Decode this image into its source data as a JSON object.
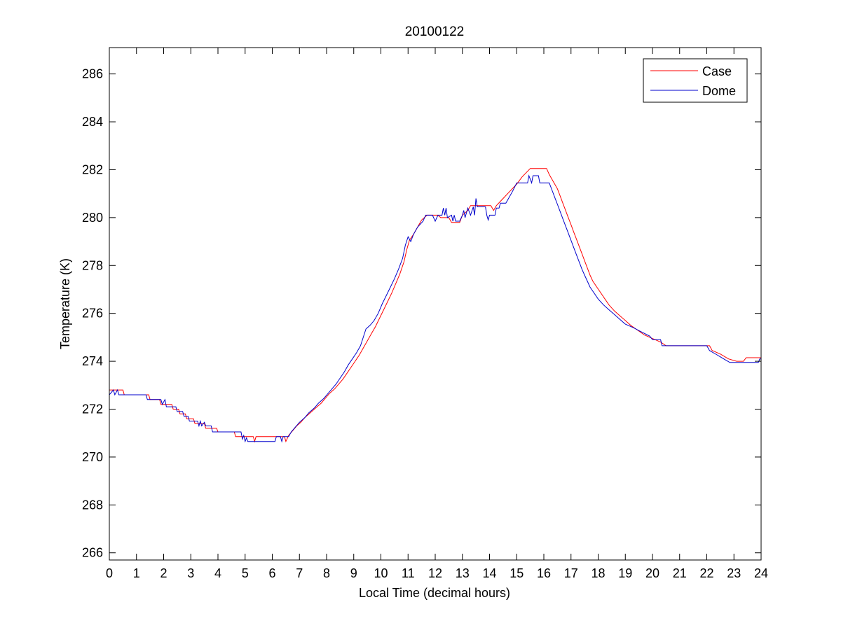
{
  "chart_data": {
    "type": "line",
    "title": "20100122",
    "xlabel": "Local Time (decimal hours)",
    "ylabel": "Temperature (K)",
    "xlim": [
      0,
      24
    ],
    "ylim": [
      265.7,
      287.1
    ],
    "xticks": [
      0,
      1,
      2,
      3,
      4,
      5,
      6,
      7,
      8,
      9,
      10,
      11,
      12,
      13,
      14,
      15,
      16,
      17,
      18,
      19,
      20,
      21,
      22,
      23,
      24
    ],
    "yticks": [
      266,
      268,
      270,
      272,
      274,
      276,
      278,
      280,
      282,
      284,
      286
    ],
    "grid": false,
    "legend": "top-right",
    "series": [
      {
        "name": "Case",
        "color": "#ff0000",
        "points": [
          [
            0,
            272.8
          ],
          [
            0.5,
            272.8
          ],
          [
            0.55,
            272.6
          ],
          [
            1.45,
            272.6
          ],
          [
            1.5,
            272.4
          ],
          [
            1.85,
            272.4
          ],
          [
            1.9,
            272.2
          ],
          [
            2.3,
            272.2
          ],
          [
            2.35,
            272.0
          ],
          [
            2.55,
            272.0
          ],
          [
            2.6,
            271.8
          ],
          [
            2.8,
            271.8
          ],
          [
            2.85,
            271.6
          ],
          [
            3.1,
            271.6
          ],
          [
            3.15,
            271.4
          ],
          [
            3.5,
            271.4
          ],
          [
            3.55,
            271.2
          ],
          [
            3.95,
            271.2
          ],
          [
            4.0,
            271.05
          ],
          [
            4.6,
            271.05
          ],
          [
            4.65,
            270.85
          ],
          [
            5.3,
            270.85
          ],
          [
            5.35,
            270.65
          ],
          [
            5.4,
            270.85
          ],
          [
            6.45,
            270.85
          ],
          [
            6.5,
            270.65
          ],
          [
            6.6,
            270.9
          ],
          [
            6.75,
            271.1
          ],
          [
            6.9,
            271.3
          ],
          [
            7.05,
            271.45
          ],
          [
            7.2,
            271.65
          ],
          [
            7.4,
            271.85
          ],
          [
            7.6,
            272.05
          ],
          [
            7.8,
            272.25
          ],
          [
            7.95,
            272.45
          ],
          [
            8.1,
            272.65
          ],
          [
            8.3,
            272.85
          ],
          [
            8.45,
            273.05
          ],
          [
            8.6,
            273.25
          ],
          [
            8.75,
            273.5
          ],
          [
            8.9,
            273.75
          ],
          [
            9.05,
            274.0
          ],
          [
            9.2,
            274.25
          ],
          [
            9.35,
            274.55
          ],
          [
            9.5,
            274.85
          ],
          [
            9.65,
            275.15
          ],
          [
            9.8,
            275.45
          ],
          [
            9.95,
            275.8
          ],
          [
            10.1,
            276.15
          ],
          [
            10.25,
            276.5
          ],
          [
            10.4,
            276.85
          ],
          [
            10.55,
            277.25
          ],
          [
            10.7,
            277.65
          ],
          [
            10.85,
            278.15
          ],
          [
            10.95,
            278.65
          ],
          [
            11.05,
            279.05
          ],
          [
            11.2,
            279.3
          ],
          [
            11.35,
            279.6
          ],
          [
            11.5,
            279.9
          ],
          [
            11.7,
            280.1
          ],
          [
            12.1,
            280.1
          ],
          [
            12.2,
            280.0
          ],
          [
            12.5,
            280.0
          ],
          [
            12.6,
            279.8
          ],
          [
            12.9,
            279.8
          ],
          [
            13.0,
            280.1
          ],
          [
            13.2,
            280.3
          ],
          [
            13.3,
            280.5
          ],
          [
            14.05,
            280.5
          ],
          [
            14.15,
            280.3
          ],
          [
            14.25,
            280.5
          ],
          [
            14.5,
            280.8
          ],
          [
            14.75,
            281.1
          ],
          [
            15.0,
            281.4
          ],
          [
            15.2,
            281.7
          ],
          [
            15.5,
            282.05
          ],
          [
            16.1,
            282.05
          ],
          [
            16.2,
            281.8
          ],
          [
            16.35,
            281.5
          ],
          [
            16.5,
            281.2
          ],
          [
            16.6,
            280.9
          ],
          [
            16.7,
            280.6
          ],
          [
            16.8,
            280.3
          ],
          [
            16.9,
            280.0
          ],
          [
            17.0,
            279.7
          ],
          [
            17.1,
            279.4
          ],
          [
            17.2,
            279.1
          ],
          [
            17.3,
            278.8
          ],
          [
            17.4,
            278.5
          ],
          [
            17.5,
            278.2
          ],
          [
            17.6,
            277.9
          ],
          [
            17.7,
            277.6
          ],
          [
            17.8,
            277.35
          ],
          [
            17.95,
            277.1
          ],
          [
            18.1,
            276.85
          ],
          [
            18.25,
            276.6
          ],
          [
            18.4,
            276.35
          ],
          [
            18.6,
            276.1
          ],
          [
            18.8,
            275.9
          ],
          [
            19.0,
            275.7
          ],
          [
            19.2,
            275.5
          ],
          [
            19.45,
            275.3
          ],
          [
            19.7,
            275.1
          ],
          [
            20.0,
            274.95
          ],
          [
            20.3,
            274.8
          ],
          [
            20.5,
            274.65
          ],
          [
            22.1,
            274.65
          ],
          [
            22.2,
            274.45
          ],
          [
            22.5,
            274.3
          ],
          [
            22.8,
            274.1
          ],
          [
            23.1,
            274.0
          ],
          [
            23.35,
            274.0
          ],
          [
            23.45,
            274.15
          ],
          [
            24,
            274.15
          ]
        ]
      },
      {
        "name": "Dome",
        "color": "#0000cc",
        "points": [
          [
            0,
            272.6
          ],
          [
            0.15,
            272.8
          ],
          [
            0.2,
            272.6
          ],
          [
            0.3,
            272.8
          ],
          [
            0.35,
            272.6
          ],
          [
            1.35,
            272.6
          ],
          [
            1.4,
            272.4
          ],
          [
            1.9,
            272.4
          ],
          [
            1.95,
            272.2
          ],
          [
            2.05,
            272.4
          ],
          [
            2.1,
            272.1
          ],
          [
            2.45,
            272.1
          ],
          [
            2.5,
            271.9
          ],
          [
            2.7,
            271.9
          ],
          [
            2.75,
            271.7
          ],
          [
            2.9,
            271.7
          ],
          [
            2.95,
            271.5
          ],
          [
            3.25,
            271.5
          ],
          [
            3.3,
            271.3
          ],
          [
            3.35,
            271.5
          ],
          [
            3.4,
            271.3
          ],
          [
            3.5,
            271.45
          ],
          [
            3.55,
            271.3
          ],
          [
            3.75,
            271.3
          ],
          [
            3.8,
            271.05
          ],
          [
            4.85,
            271.05
          ],
          [
            4.9,
            270.75
          ],
          [
            4.95,
            270.9
          ],
          [
            5.0,
            270.65
          ],
          [
            5.05,
            270.8
          ],
          [
            5.1,
            270.65
          ],
          [
            6.1,
            270.65
          ],
          [
            6.15,
            270.85
          ],
          [
            6.3,
            270.85
          ],
          [
            6.35,
            270.65
          ],
          [
            6.4,
            270.85
          ],
          [
            6.6,
            270.85
          ],
          [
            6.7,
            271.05
          ],
          [
            6.85,
            271.25
          ],
          [
            7.0,
            271.45
          ],
          [
            7.2,
            271.65
          ],
          [
            7.35,
            271.85
          ],
          [
            7.55,
            272.05
          ],
          [
            7.7,
            272.25
          ],
          [
            7.9,
            272.45
          ],
          [
            8.05,
            272.65
          ],
          [
            8.2,
            272.85
          ],
          [
            8.35,
            273.05
          ],
          [
            8.5,
            273.3
          ],
          [
            8.65,
            273.55
          ],
          [
            8.8,
            273.85
          ],
          [
            8.95,
            274.1
          ],
          [
            9.1,
            274.35
          ],
          [
            9.25,
            274.65
          ],
          [
            9.35,
            275.0
          ],
          [
            9.45,
            275.35
          ],
          [
            9.6,
            275.5
          ],
          [
            9.75,
            275.7
          ],
          [
            9.9,
            276.0
          ],
          [
            10.05,
            276.4
          ],
          [
            10.2,
            276.75
          ],
          [
            10.35,
            277.1
          ],
          [
            10.5,
            277.45
          ],
          [
            10.65,
            277.85
          ],
          [
            10.8,
            278.3
          ],
          [
            10.9,
            278.85
          ],
          [
            11.0,
            279.2
          ],
          [
            11.1,
            279.0
          ],
          [
            11.2,
            279.3
          ],
          [
            11.35,
            279.6
          ],
          [
            11.55,
            279.85
          ],
          [
            11.65,
            280.1
          ],
          [
            11.9,
            280.1
          ],
          [
            12.0,
            279.85
          ],
          [
            12.1,
            280.1
          ],
          [
            12.25,
            280.1
          ],
          [
            12.3,
            280.4
          ],
          [
            12.35,
            280.1
          ],
          [
            12.4,
            280.4
          ],
          [
            12.45,
            280.0
          ],
          [
            12.6,
            280.1
          ],
          [
            12.65,
            279.85
          ],
          [
            12.7,
            280.1
          ],
          [
            12.75,
            279.85
          ],
          [
            12.9,
            279.85
          ],
          [
            13.0,
            280.1
          ],
          [
            13.05,
            280.3
          ],
          [
            13.1,
            280.0
          ],
          [
            13.2,
            280.4
          ],
          [
            13.3,
            280.1
          ],
          [
            13.4,
            280.45
          ],
          [
            13.45,
            280.1
          ],
          [
            13.5,
            280.8
          ],
          [
            13.55,
            280.45
          ],
          [
            13.85,
            280.45
          ],
          [
            13.9,
            280.1
          ],
          [
            13.95,
            279.9
          ],
          [
            14.0,
            280.1
          ],
          [
            14.2,
            280.1
          ],
          [
            14.25,
            280.4
          ],
          [
            14.35,
            280.4
          ],
          [
            14.4,
            280.6
          ],
          [
            14.6,
            280.6
          ],
          [
            14.7,
            280.8
          ],
          [
            14.85,
            281.1
          ],
          [
            15.0,
            281.45
          ],
          [
            15.4,
            281.45
          ],
          [
            15.45,
            281.75
          ],
          [
            15.55,
            281.45
          ],
          [
            15.6,
            281.75
          ],
          [
            15.8,
            281.75
          ],
          [
            15.85,
            281.45
          ],
          [
            16.2,
            281.45
          ],
          [
            16.3,
            281.15
          ],
          [
            16.4,
            280.85
          ],
          [
            16.5,
            280.55
          ],
          [
            16.6,
            280.25
          ],
          [
            16.7,
            279.95
          ],
          [
            16.8,
            279.65
          ],
          [
            16.9,
            279.35
          ],
          [
            17.0,
            279.05
          ],
          [
            17.1,
            278.75
          ],
          [
            17.2,
            278.45
          ],
          [
            17.3,
            278.15
          ],
          [
            17.4,
            277.85
          ],
          [
            17.5,
            277.6
          ],
          [
            17.6,
            277.35
          ],
          [
            17.7,
            277.1
          ],
          [
            17.85,
            276.85
          ],
          [
            18.0,
            276.6
          ],
          [
            18.2,
            276.35
          ],
          [
            18.4,
            276.15
          ],
          [
            18.6,
            275.95
          ],
          [
            18.8,
            275.75
          ],
          [
            19.0,
            275.55
          ],
          [
            19.3,
            275.4
          ],
          [
            19.55,
            275.25
          ],
          [
            19.9,
            275.05
          ],
          [
            20.0,
            274.9
          ],
          [
            20.3,
            274.9
          ],
          [
            20.35,
            274.65
          ],
          [
            22.0,
            274.65
          ],
          [
            22.1,
            274.45
          ],
          [
            22.4,
            274.25
          ],
          [
            22.7,
            274.05
          ],
          [
            22.85,
            273.95
          ],
          [
            23.9,
            273.95
          ],
          [
            23.95,
            274.1
          ],
          [
            24,
            274.1
          ]
        ]
      }
    ]
  }
}
